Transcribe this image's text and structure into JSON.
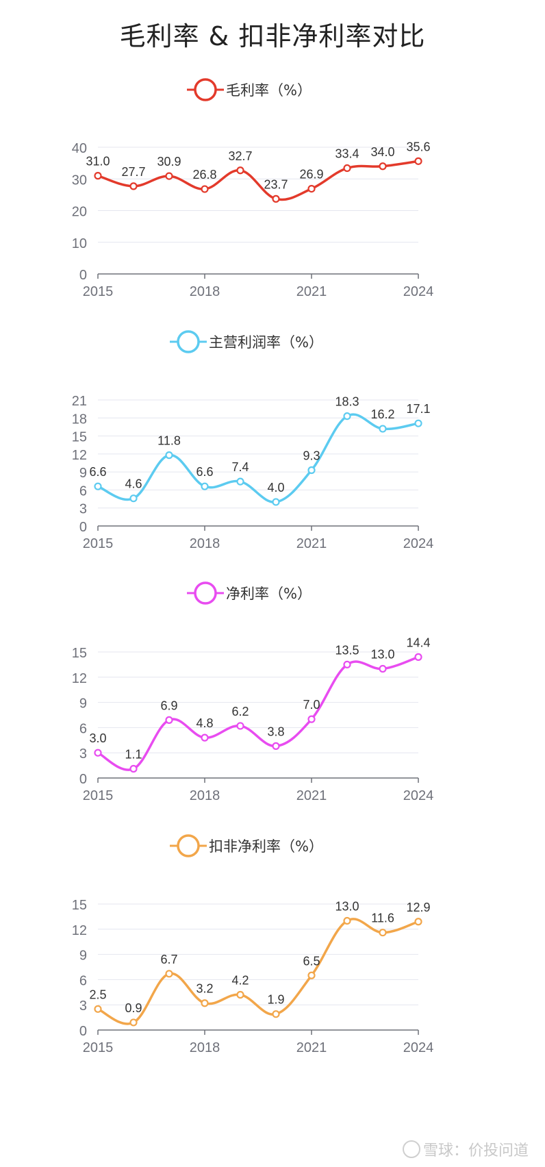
{
  "title": "毛利率 & 扣非净利率对比",
  "watermark": "雪球：价投问道",
  "chart_data": [
    {
      "type": "line",
      "legend": "毛利率（%）",
      "color": "#e33a2b",
      "x": [
        2015,
        2016,
        2017,
        2018,
        2019,
        2020,
        2021,
        2022,
        2023,
        2024
      ],
      "x_tick_labels": [
        "2015",
        "2018",
        "2021",
        "2024"
      ],
      "values": [
        31.0,
        27.7,
        30.9,
        26.8,
        32.7,
        23.7,
        26.9,
        33.4,
        34.0,
        35.6
      ],
      "data_labels": [
        "31.0",
        "27.7",
        "30.9",
        "26.8",
        "32.7",
        "23.7",
        "26.9",
        "33.4",
        "34.0",
        "35.6"
      ],
      "y_ticks": [
        0,
        10,
        20,
        30,
        40
      ],
      "ylim": [
        0,
        40
      ],
      "grid": true,
      "legend_position": "top-center"
    },
    {
      "type": "line",
      "legend": "主营利润率（%）",
      "color": "#5ccbf0",
      "x": [
        2015,
        2016,
        2017,
        2018,
        2019,
        2020,
        2021,
        2022,
        2023,
        2024
      ],
      "x_tick_labels": [
        "2015",
        "2018",
        "2021",
        "2024"
      ],
      "values": [
        6.6,
        4.6,
        11.8,
        6.6,
        7.4,
        4.0,
        9.3,
        18.3,
        16.2,
        17.1
      ],
      "data_labels": [
        "6.6",
        "4.6",
        "11.8",
        "6.6",
        "7.4",
        "4.0",
        "9.3",
        "18.3",
        "16.2",
        "17.1"
      ],
      "y_ticks": [
        0,
        3,
        6,
        9,
        12,
        15,
        18,
        21
      ],
      "ylim": [
        0,
        21
      ],
      "grid": true,
      "legend_position": "top-center"
    },
    {
      "type": "line",
      "legend": "净利率（%）",
      "color": "#e84cf0",
      "x": [
        2015,
        2016,
        2017,
        2018,
        2019,
        2020,
        2021,
        2022,
        2023,
        2024
      ],
      "x_tick_labels": [
        "2015",
        "2018",
        "2021",
        "2024"
      ],
      "values": [
        3.0,
        1.1,
        6.9,
        4.8,
        6.2,
        3.8,
        7.0,
        13.5,
        13.0,
        14.4
      ],
      "data_labels": [
        "3.0",
        "1.1",
        "6.9",
        "4.8",
        "6.2",
        "3.8",
        "7.0",
        "13.5",
        "13.0",
        "14.4"
      ],
      "y_ticks": [
        0,
        3,
        6,
        9,
        12,
        15
      ],
      "ylim": [
        0,
        15
      ],
      "grid": true,
      "legend_position": "top-center"
    },
    {
      "type": "line",
      "legend": "扣非净利率（%）",
      "color": "#f2a64a",
      "x": [
        2015,
        2016,
        2017,
        2018,
        2019,
        2020,
        2021,
        2022,
        2023,
        2024
      ],
      "x_tick_labels": [
        "2015",
        "2018",
        "2021",
        "2024"
      ],
      "values": [
        2.5,
        0.9,
        6.7,
        3.2,
        4.2,
        1.9,
        6.5,
        13.0,
        11.6,
        12.9
      ],
      "data_labels": [
        "2.5",
        "0.9",
        "6.7",
        "3.2",
        "4.2",
        "1.9",
        "6.5",
        "13.0",
        "11.6",
        "12.9"
      ],
      "y_ticks": [
        0,
        3,
        6,
        9,
        12,
        15
      ],
      "ylim": [
        0,
        15
      ],
      "grid": true,
      "legend_position": "top-center"
    }
  ]
}
